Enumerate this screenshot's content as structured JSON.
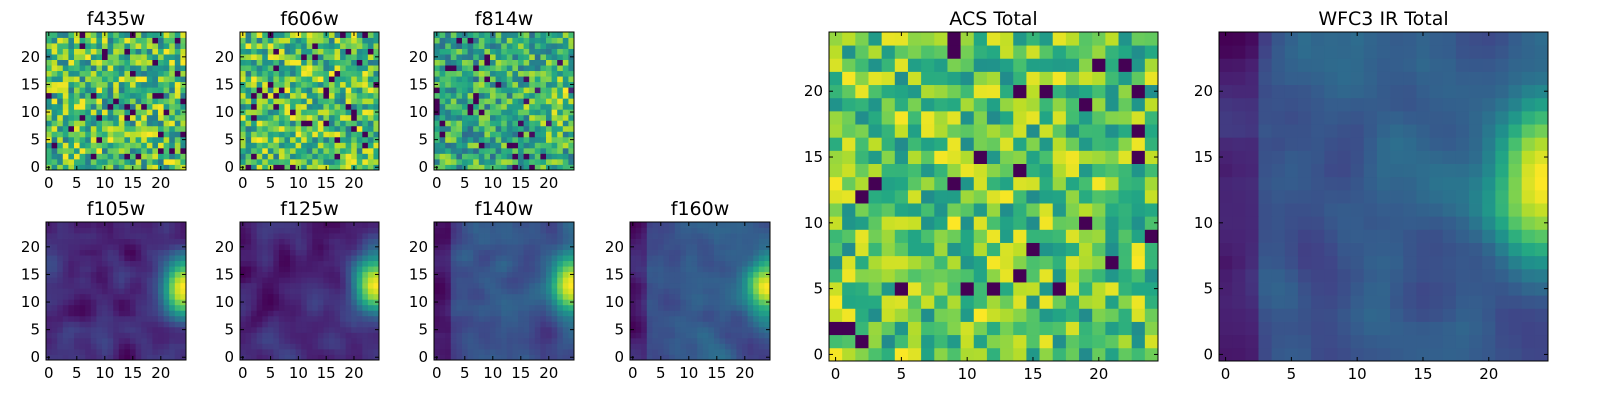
{
  "chart_data": [
    {
      "type": "heatmap",
      "title": "f435w",
      "colormap": "viridis",
      "grid_size": [
        25,
        25
      ],
      "xticks": [
        0,
        5,
        10,
        15,
        20
      ],
      "yticks": [
        0,
        5,
        10,
        15,
        20
      ],
      "pattern": "noise"
    },
    {
      "type": "heatmap",
      "title": "f606w",
      "colormap": "viridis",
      "grid_size": [
        25,
        25
      ],
      "xticks": [
        0,
        5,
        10,
        15,
        20
      ],
      "yticks": [
        0,
        5,
        10,
        15,
        20
      ],
      "pattern": "noise"
    },
    {
      "type": "heatmap",
      "title": "f814w",
      "colormap": "viridis",
      "grid_size": [
        25,
        25
      ],
      "xticks": [
        0,
        5,
        10,
        15,
        20
      ],
      "yticks": [
        0,
        5,
        10,
        15,
        20
      ],
      "pattern": "noise_bright_right"
    },
    {
      "type": "heatmap",
      "title": "f105w",
      "colormap": "viridis",
      "grid_size": [
        25,
        25
      ],
      "xticks": [
        0,
        5,
        10,
        15,
        20
      ],
      "yticks": [
        0,
        5,
        10,
        15,
        20
      ],
      "pattern": "smooth_bright_right"
    },
    {
      "type": "heatmap",
      "title": "f125w",
      "colormap": "viridis",
      "grid_size": [
        25,
        25
      ],
      "xticks": [
        0,
        5,
        10,
        15,
        20
      ],
      "yticks": [
        0,
        5,
        10,
        15,
        20
      ],
      "pattern": "smooth_bright_right"
    },
    {
      "type": "heatmap",
      "title": "f140w",
      "colormap": "viridis",
      "grid_size": [
        25,
        25
      ],
      "xticks": [
        0,
        5,
        10,
        15,
        20
      ],
      "yticks": [
        0,
        5,
        10,
        15,
        20
      ],
      "pattern": "smooth_bright_right_dark"
    },
    {
      "type": "heatmap",
      "title": "f160w",
      "colormap": "viridis",
      "grid_size": [
        25,
        25
      ],
      "xticks": [
        0,
        5,
        10,
        15,
        20
      ],
      "yticks": [
        0,
        5,
        10,
        15,
        20
      ],
      "pattern": "smooth_bright_right_dark"
    },
    {
      "type": "heatmap",
      "title": "ACS Total",
      "colormap": "viridis",
      "grid_size": [
        25,
        25
      ],
      "xticks": [
        0,
        5,
        10,
        15,
        20
      ],
      "yticks": [
        0,
        5,
        10,
        15,
        20
      ],
      "pattern": "noise_bright"
    },
    {
      "type": "heatmap",
      "title": "WFC3 IR Total",
      "colormap": "viridis",
      "grid_size": [
        25,
        25
      ],
      "xticks": [
        0,
        5,
        10,
        15,
        20
      ],
      "yticks": [
        0,
        5,
        10,
        15,
        20
      ],
      "pattern": "smooth_bright_right_dark"
    }
  ]
}
